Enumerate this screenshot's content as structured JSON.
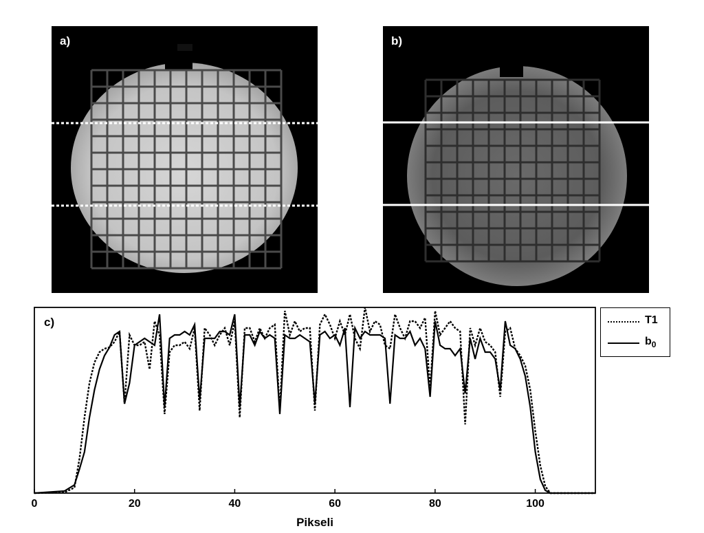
{
  "panels": {
    "a_label": "a)",
    "b_label": "b)",
    "c_label": "c)"
  },
  "legend": {
    "t1": "T1",
    "b0_main": "b",
    "b0_sub": "0"
  },
  "chart_data": {
    "type": "line",
    "xlabel": "Pikseli",
    "ylabel": "",
    "xlim": [
      0,
      112
    ],
    "x_ticks": [
      0,
      20,
      40,
      60,
      80,
      100
    ],
    "y_ticks": [],
    "series": [
      {
        "name": "T1",
        "style": "dotted",
        "x": [
          0,
          6,
          8,
          9,
          10,
          11,
          12,
          13,
          14,
          15,
          16,
          17,
          18,
          19,
          20,
          21,
          22,
          23,
          24,
          25,
          26,
          27,
          28,
          29,
          30,
          31,
          32,
          33,
          34,
          35,
          36,
          37,
          38,
          39,
          40,
          41,
          42,
          43,
          44,
          45,
          46,
          47,
          48,
          49,
          50,
          51,
          52,
          53,
          54,
          55,
          56,
          57,
          58,
          59,
          60,
          61,
          62,
          63,
          64,
          65,
          66,
          67,
          68,
          69,
          70,
          71,
          72,
          73,
          74,
          75,
          76,
          77,
          78,
          79,
          80,
          81,
          82,
          83,
          84,
          85,
          86,
          87,
          88,
          89,
          90,
          91,
          92,
          93,
          94,
          95,
          96,
          97,
          98,
          99,
          100,
          101,
          102,
          103,
          104,
          105,
          106,
          108,
          112
        ],
        "y": [
          0,
          1,
          8,
          50,
          110,
          160,
          190,
          205,
          210,
          212,
          220,
          235,
          130,
          230,
          215,
          215,
          220,
          180,
          250,
          230,
          115,
          205,
          215,
          215,
          220,
          210,
          240,
          120,
          240,
          230,
          215,
          230,
          240,
          215,
          250,
          110,
          240,
          240,
          220,
          240,
          225,
          240,
          245,
          120,
          265,
          230,
          250,
          235,
          240,
          240,
          120,
          245,
          260,
          245,
          225,
          250,
          230,
          260,
          225,
          210,
          270,
          235,
          250,
          245,
          215,
          210,
          260,
          240,
          225,
          250,
          250,
          240,
          255,
          150,
          265,
          230,
          240,
          250,
          240,
          235,
          100,
          240,
          215,
          240,
          220,
          215,
          205,
          140,
          235,
          240,
          210,
          200,
          185,
          150,
          90,
          40,
          10,
          0,
          0,
          0,
          0,
          0,
          0
        ]
      },
      {
        "name": "b0",
        "style": "solid",
        "x": [
          0,
          6,
          8,
          9,
          10,
          11,
          12,
          13,
          14,
          15,
          16,
          17,
          18,
          19,
          20,
          21,
          22,
          23,
          24,
          25,
          26,
          27,
          28,
          29,
          30,
          31,
          32,
          33,
          34,
          35,
          36,
          37,
          38,
          39,
          40,
          41,
          42,
          43,
          44,
          45,
          46,
          47,
          48,
          49,
          50,
          51,
          52,
          53,
          54,
          55,
          56,
          57,
          58,
          59,
          60,
          61,
          62,
          63,
          64,
          65,
          66,
          67,
          68,
          69,
          70,
          71,
          72,
          73,
          74,
          75,
          76,
          77,
          78,
          79,
          80,
          81,
          82,
          83,
          84,
          85,
          86,
          87,
          88,
          89,
          90,
          91,
          92,
          93,
          94,
          95,
          96,
          97,
          98,
          99,
          100,
          101,
          102,
          103,
          104,
          105,
          106,
          108,
          112
        ],
        "y": [
          0,
          3,
          12,
          35,
          60,
          110,
          150,
          180,
          200,
          212,
          230,
          235,
          130,
          160,
          215,
          220,
          225,
          220,
          215,
          260,
          125,
          225,
          230,
          230,
          235,
          230,
          245,
          135,
          225,
          225,
          225,
          235,
          235,
          230,
          260,
          125,
          230,
          230,
          215,
          235,
          225,
          230,
          225,
          115,
          230,
          225,
          225,
          230,
          225,
          220,
          130,
          230,
          235,
          225,
          230,
          215,
          240,
          125,
          240,
          225,
          235,
          230,
          230,
          230,
          225,
          130,
          230,
          225,
          225,
          235,
          215,
          225,
          210,
          140,
          250,
          215,
          210,
          210,
          200,
          210,
          145,
          225,
          195,
          225,
          205,
          205,
          195,
          150,
          250,
          215,
          210,
          195,
          170,
          125,
          60,
          20,
          4,
          0,
          0,
          0,
          0,
          0,
          0
        ]
      }
    ]
  }
}
